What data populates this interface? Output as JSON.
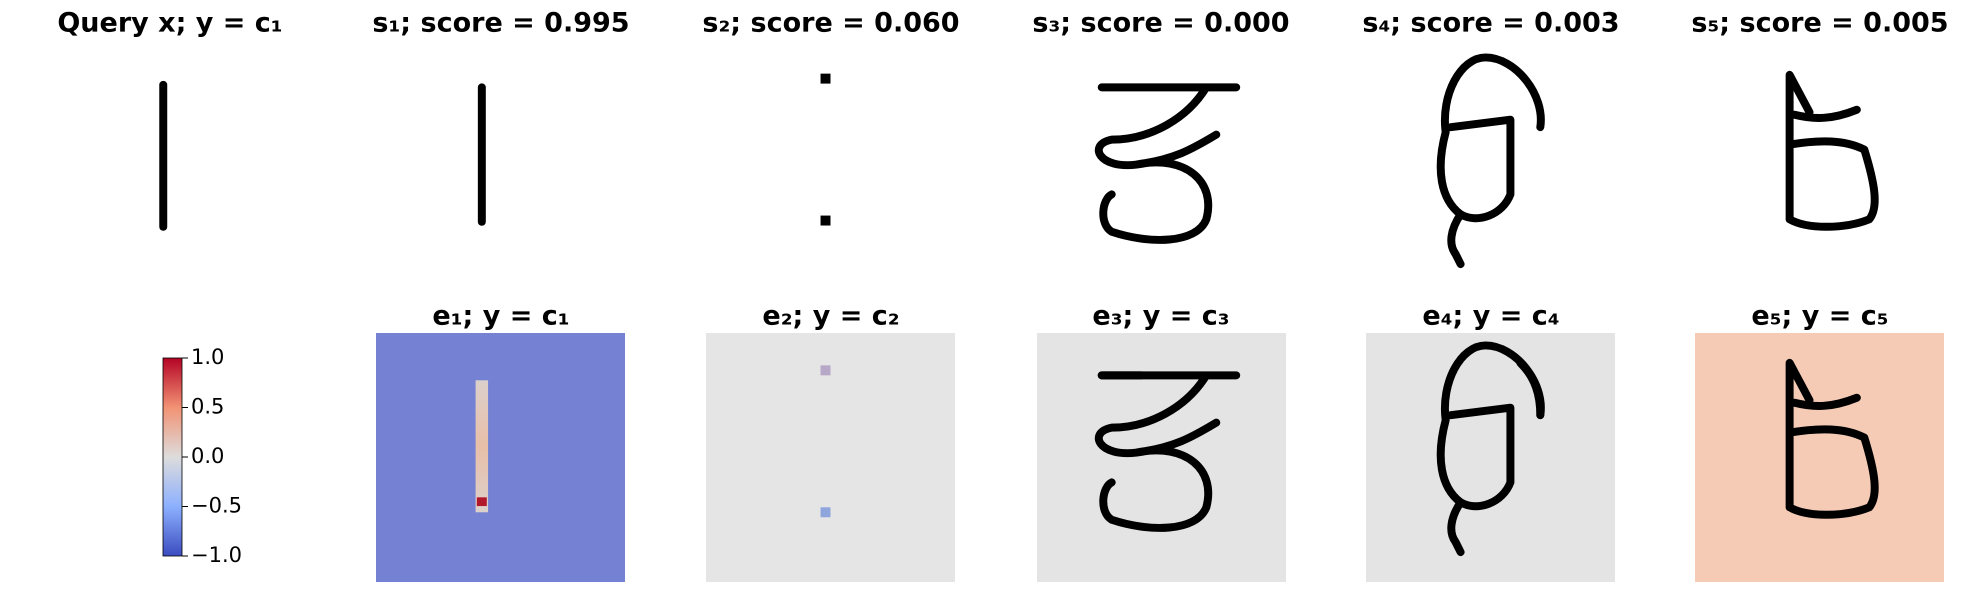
{
  "top_row": [
    {
      "title": "Query x; y = c₁"
    },
    {
      "title": "s₁; score = 0.995"
    },
    {
      "title": "s₂; score = 0.060"
    },
    {
      "title": "s₃; score = 0.000"
    },
    {
      "title": "s₄; score = 0.003"
    },
    {
      "title": "s₅; score = 0.005"
    }
  ],
  "bottom_row": [
    {
      "title": "e₁; y = c₁"
    },
    {
      "title": "e₂; y = c₂"
    },
    {
      "title": "e₃; y = c₃"
    },
    {
      "title": "e₄; y = c₄"
    },
    {
      "title": "e₅; y = c₅"
    }
  ],
  "colorbar": {
    "lim": [
      -1,
      1
    ],
    "ticks": [
      {
        "value": 1,
        "label": "1.0"
      },
      {
        "value": 0.5,
        "label": "0.5"
      },
      {
        "value": 0,
        "label": "0.0"
      },
      {
        "value": -0.5,
        "label": "−0.5"
      },
      {
        "value": -1,
        "label": "−1.0"
      }
    ]
  }
}
